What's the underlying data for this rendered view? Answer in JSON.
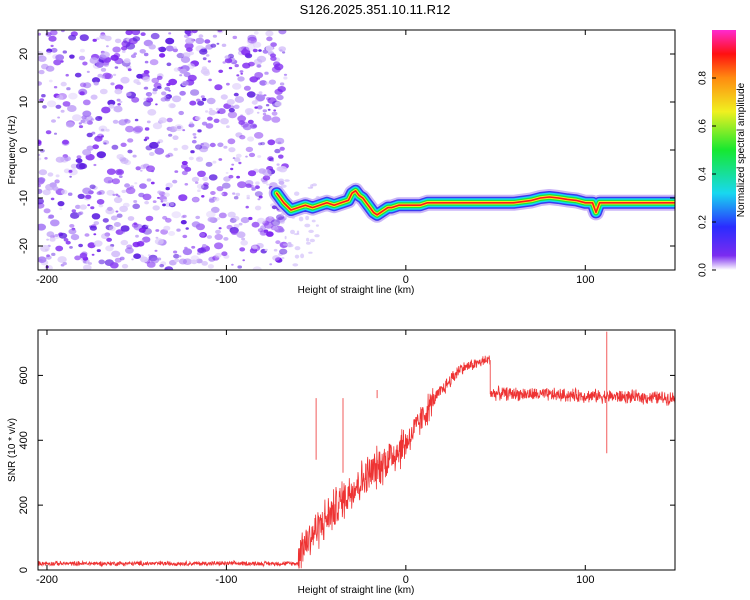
{
  "title": "S126.2025.351.10.11.R12",
  "chart_data": [
    {
      "type": "heatmap",
      "name": "spectrogram",
      "xlabel": "Height of straight line (km)",
      "ylabel": "Frequency (Hz)",
      "xlim": [
        -205,
        150
      ],
      "ylim": [
        -25,
        25
      ],
      "xticks": [
        -200,
        -100,
        0,
        100
      ],
      "yticks": [
        -20,
        -10,
        0,
        10,
        20
      ],
      "noise_region_x": [
        -205,
        -70
      ],
      "signal_start_x": -72,
      "signal_track": {
        "x": [
          -72,
          -68,
          -64,
          -60,
          -56,
          -52,
          -48,
          -44,
          -40,
          -36,
          -32,
          -30,
          -28,
          -26,
          -24,
          -22,
          -20,
          -18,
          -16,
          -14,
          -12,
          -10,
          -8,
          -4,
          0,
          4,
          8,
          12,
          16,
          20,
          30,
          40,
          50,
          60,
          70,
          75,
          80,
          85,
          90,
          95,
          100,
          104,
          106,
          108,
          112,
          120,
          130,
          140,
          150
        ],
        "y": [
          -9,
          -11,
          -12.5,
          -12,
          -11.5,
          -12,
          -11.5,
          -11,
          -11.5,
          -11,
          -10.5,
          -9,
          -8.5,
          -9.5,
          -10,
          -11,
          -12,
          -13,
          -13.5,
          -13,
          -12.5,
          -12,
          -12,
          -11.5,
          -11.5,
          -11.5,
          -11.5,
          -11,
          -11,
          -11,
          -11,
          -11,
          -11,
          -11,
          -10.5,
          -10,
          -9.8,
          -10,
          -10.3,
          -10.5,
          -11,
          -11,
          -13,
          -11,
          -11,
          -11,
          -11,
          -11,
          -11
        ]
      },
      "colorbar": {
        "label": "Normalized spectral amplitude",
        "ticks": [
          0.0,
          0.2,
          0.4,
          0.6,
          0.8
        ],
        "tick_labels": [
          "0.0",
          "0.2",
          "0.4",
          "0.6",
          "0.8"
        ],
        "range": [
          0,
          1
        ]
      }
    },
    {
      "type": "line",
      "name": "snr",
      "xlabel": "Height of straight line (km)",
      "ylabel": "SNR (10 * v/v)",
      "xlim": [
        -205,
        150
      ],
      "ylim": [
        0,
        740
      ],
      "xticks": [
        -200,
        -100,
        0,
        100
      ],
      "yticks": [
        0,
        200,
        400,
        600
      ],
      "color": "#ee3333",
      "segments": [
        {
          "x": [
            -205,
            -60
          ],
          "y": [
            20,
            20
          ],
          "noise": 12
        },
        {
          "x": [
            -60,
            -30
          ],
          "y": [
            60,
            250
          ],
          "noise": 110
        },
        {
          "x": [
            -30,
            0
          ],
          "y": [
            250,
            390
          ],
          "noise": 110
        },
        {
          "x": [
            0,
            15
          ],
          "y": [
            390,
            520
          ],
          "noise": 80
        },
        {
          "x": [
            15,
            30
          ],
          "y": [
            520,
            620
          ],
          "noise": 40
        },
        {
          "x": [
            30,
            47
          ],
          "y": [
            620,
            650
          ],
          "noise": 30
        },
        {
          "x": [
            47,
            150
          ],
          "y": [
            545,
            530
          ],
          "noise": 35
        }
      ],
      "spikes": [
        {
          "x": -50,
          "y": 340
        },
        {
          "x": -35,
          "y": 300
        },
        {
          "x": -16,
          "y": 555
        },
        {
          "x": 112,
          "y": 735
        },
        {
          "x": 112,
          "y": 360
        }
      ]
    }
  ]
}
